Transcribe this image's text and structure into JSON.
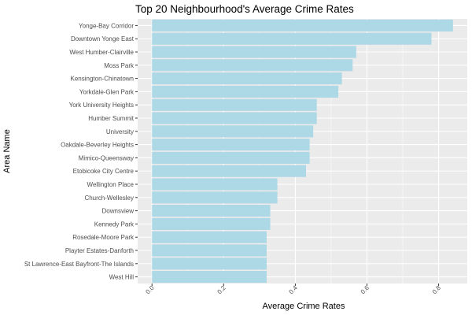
{
  "chart_data": {
    "type": "bar",
    "orientation": "horizontal",
    "title": "Top 20 Neighbourhood's Average Crime Rates",
    "xlabel": "Average Crime Rates",
    "ylabel": "Area Name",
    "xlim": [
      -0.04,
      0.88
    ],
    "xticks": [
      "0.0",
      "0.2",
      "0.4",
      "0.6",
      "0.8"
    ],
    "xtick_values": [
      0.0,
      0.2,
      0.4,
      0.6,
      0.8
    ],
    "grid": true,
    "bar_color": "#add8e6",
    "panel_color": "#ebebeb",
    "categories": [
      "West Hill",
      "St Lawrence-East Bayfront-The Islands",
      "Playter Estates-Danforth",
      "Rosedale-Moore Park",
      "Kennedy Park",
      "Downsview",
      "Church-Wellesley",
      "Wellington Place",
      "Etobicoke City Centre",
      "Mimico-Queensway",
      "Oakdale-Beverley Heights",
      "University",
      "Humber Summit",
      "York University Heights",
      "Yorkdale-Glen Park",
      "Kensington-Chinatown",
      "Moss Park",
      "West Humber-Clairville",
      "Downtown Yonge East",
      "Yonge-Bay Corridor"
    ],
    "values": [
      0.32,
      0.32,
      0.32,
      0.32,
      0.33,
      0.33,
      0.35,
      0.35,
      0.43,
      0.44,
      0.44,
      0.45,
      0.46,
      0.46,
      0.52,
      0.53,
      0.56,
      0.57,
      0.78,
      0.84
    ]
  }
}
